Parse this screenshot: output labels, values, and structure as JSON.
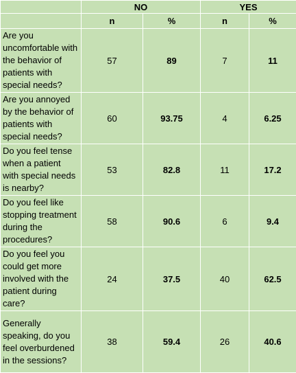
{
  "table": {
    "groups": [
      "NO",
      "YES"
    ],
    "subheaders": [
      "n",
      "%",
      "n",
      "%"
    ],
    "rows": [
      {
        "question": "Are you uncomfortable with the behavior of patients with special needs?",
        "no_n": "57",
        "no_pct": "89",
        "yes_n": "7",
        "yes_pct": "11"
      },
      {
        "question": "Are you annoyed by the behavior of patients with special needs?",
        "no_n": "60",
        "no_pct": "93.75",
        "yes_n": "4",
        "yes_pct": "6.25"
      },
      {
        "question": "Do you feel tense when a patient with special needs is nearby?",
        "no_n": "53",
        "no_pct": "82.8",
        "yes_n": "11",
        "yes_pct": "17.2"
      },
      {
        "question": "Do you feel like stopping treatment during the procedures?",
        "no_n": "58",
        "no_pct": "90.6",
        "yes_n": "6",
        "yes_pct": "9.4"
      },
      {
        "question": "Do you feel you could get more involved with the patient during care?",
        "no_n": "24",
        "no_pct": "37.5",
        "yes_n": "40",
        "yes_pct": "62.5"
      },
      {
        "question": "Generally speaking, do you feel overburdened in the sessions?",
        "no_n": "38",
        "no_pct": "59.4",
        "yes_n": "26",
        "yes_pct": "40.6"
      }
    ]
  }
}
